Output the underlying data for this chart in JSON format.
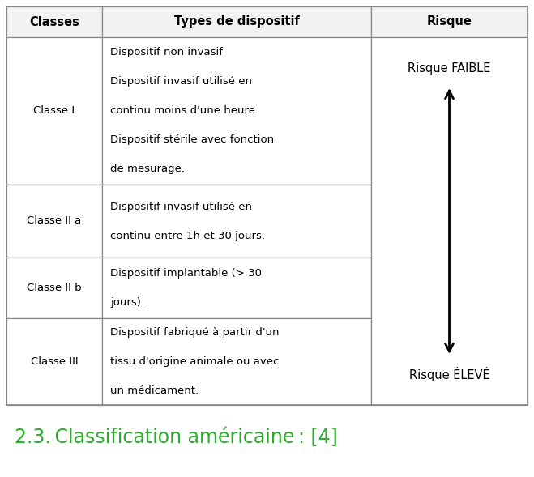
{
  "title": "2.3. Classification américaine : [4]",
  "title_color": "#2eaa2e",
  "title_fontsize": 17,
  "bg_color": "#ffffff",
  "header": [
    "Classes",
    "Types de dispositif",
    "Risque"
  ],
  "rows": [
    {
      "classe": "Classe I",
      "types": "Dispositif non invasif\n\nDispositif invasif utilisé en\n\ncontinu moins d'une heure\n\nDispositif stérile avec fonction\n\nde mesurage."
    },
    {
      "classe": "Classe II a",
      "types": "Dispositif invasif utilisé en\n\ncontinu entre 1h et 30 jours."
    },
    {
      "classe": "Classe II b",
      "types": "Dispositif implantable (> 30\n\njours)."
    },
    {
      "classe": "Classe III",
      "types": "Dispositif fabriqué à partir d'un\n\ntissu d'origine animale ou avec\n\nun médicament."
    }
  ],
  "risque_faible": "Risque FAIBLE",
  "risque_eleve": "Risque ÉLEVÉ",
  "header_fontsize": 10.5,
  "cell_fontsize": 9.5,
  "risque_fontsize": 10.5,
  "line_color": "#888888",
  "header_bg": "#f2f2f2"
}
